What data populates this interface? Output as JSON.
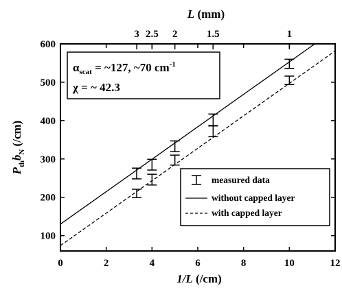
{
  "chart_data": {
    "type": "line",
    "x_axis": {
      "label_var": "1/L",
      "label_unit": " (/cm)",
      "range": [
        0,
        12
      ],
      "ticks": [
        "0",
        "2",
        "4",
        "6",
        "8",
        "10",
        "12"
      ]
    },
    "y_axis": {
      "label_var_main": "P",
      "label_sub1": "th",
      "label_var2": "b",
      "label_sub2": "N",
      "label_unit": " (/cm)",
      "range": [
        60,
        600
      ],
      "ticks": [
        "100",
        "200",
        "300",
        "400",
        "500",
        "600"
      ]
    },
    "top_axis": {
      "label_var": "L",
      "label_unit": " (mm)",
      "ticks": [
        {
          "text": "3",
          "value_mm": 3
        },
        {
          "text": "2.5",
          "value_mm": 2.5
        },
        {
          "text": "2",
          "value_mm": 2
        },
        {
          "text": "1.5",
          "value_mm": 1.5
        },
        {
          "text": "1",
          "value_mm": 1
        }
      ]
    },
    "annotation": {
      "line1_prefix": "α",
      "line1_sub": "scat",
      "line1_value": " = ~127, ~70 cm",
      "line1_sup": "-1",
      "line2": "χ = ~ 42.3"
    },
    "legend": {
      "placement": "bottom-right",
      "items": [
        {
          "key": "measured",
          "label": "measured data"
        },
        {
          "key": "uncapped",
          "label": "without capped layer"
        },
        {
          "key": "capped",
          "label": "with capped layer"
        }
      ]
    },
    "series": [
      {
        "name": "without capped layer",
        "style": "solid",
        "fit": {
          "intercept": 130,
          "slope": 42.3
        },
        "points": [
          {
            "x": 3.33,
            "y": 262,
            "err": 14
          },
          {
            "x": 4.0,
            "y": 285,
            "err": 14
          },
          {
            "x": 5.0,
            "y": 333,
            "err": 14
          },
          {
            "x": 6.67,
            "y": 402,
            "err": 15
          },
          {
            "x": 10.0,
            "y": 548,
            "err": 12
          }
        ]
      },
      {
        "name": "with capped layer",
        "style": "dashed",
        "fit": {
          "intercept": 74,
          "slope": 42.3
        },
        "points": [
          {
            "x": 3.33,
            "y": 210,
            "err": 11
          },
          {
            "x": 4.0,
            "y": 246,
            "err": 14
          },
          {
            "x": 5.0,
            "y": 297,
            "err": 13
          },
          {
            "x": 6.67,
            "y": 372,
            "err": 14
          },
          {
            "x": 10.0,
            "y": 505,
            "err": 11
          }
        ]
      }
    ],
    "grid": false
  }
}
